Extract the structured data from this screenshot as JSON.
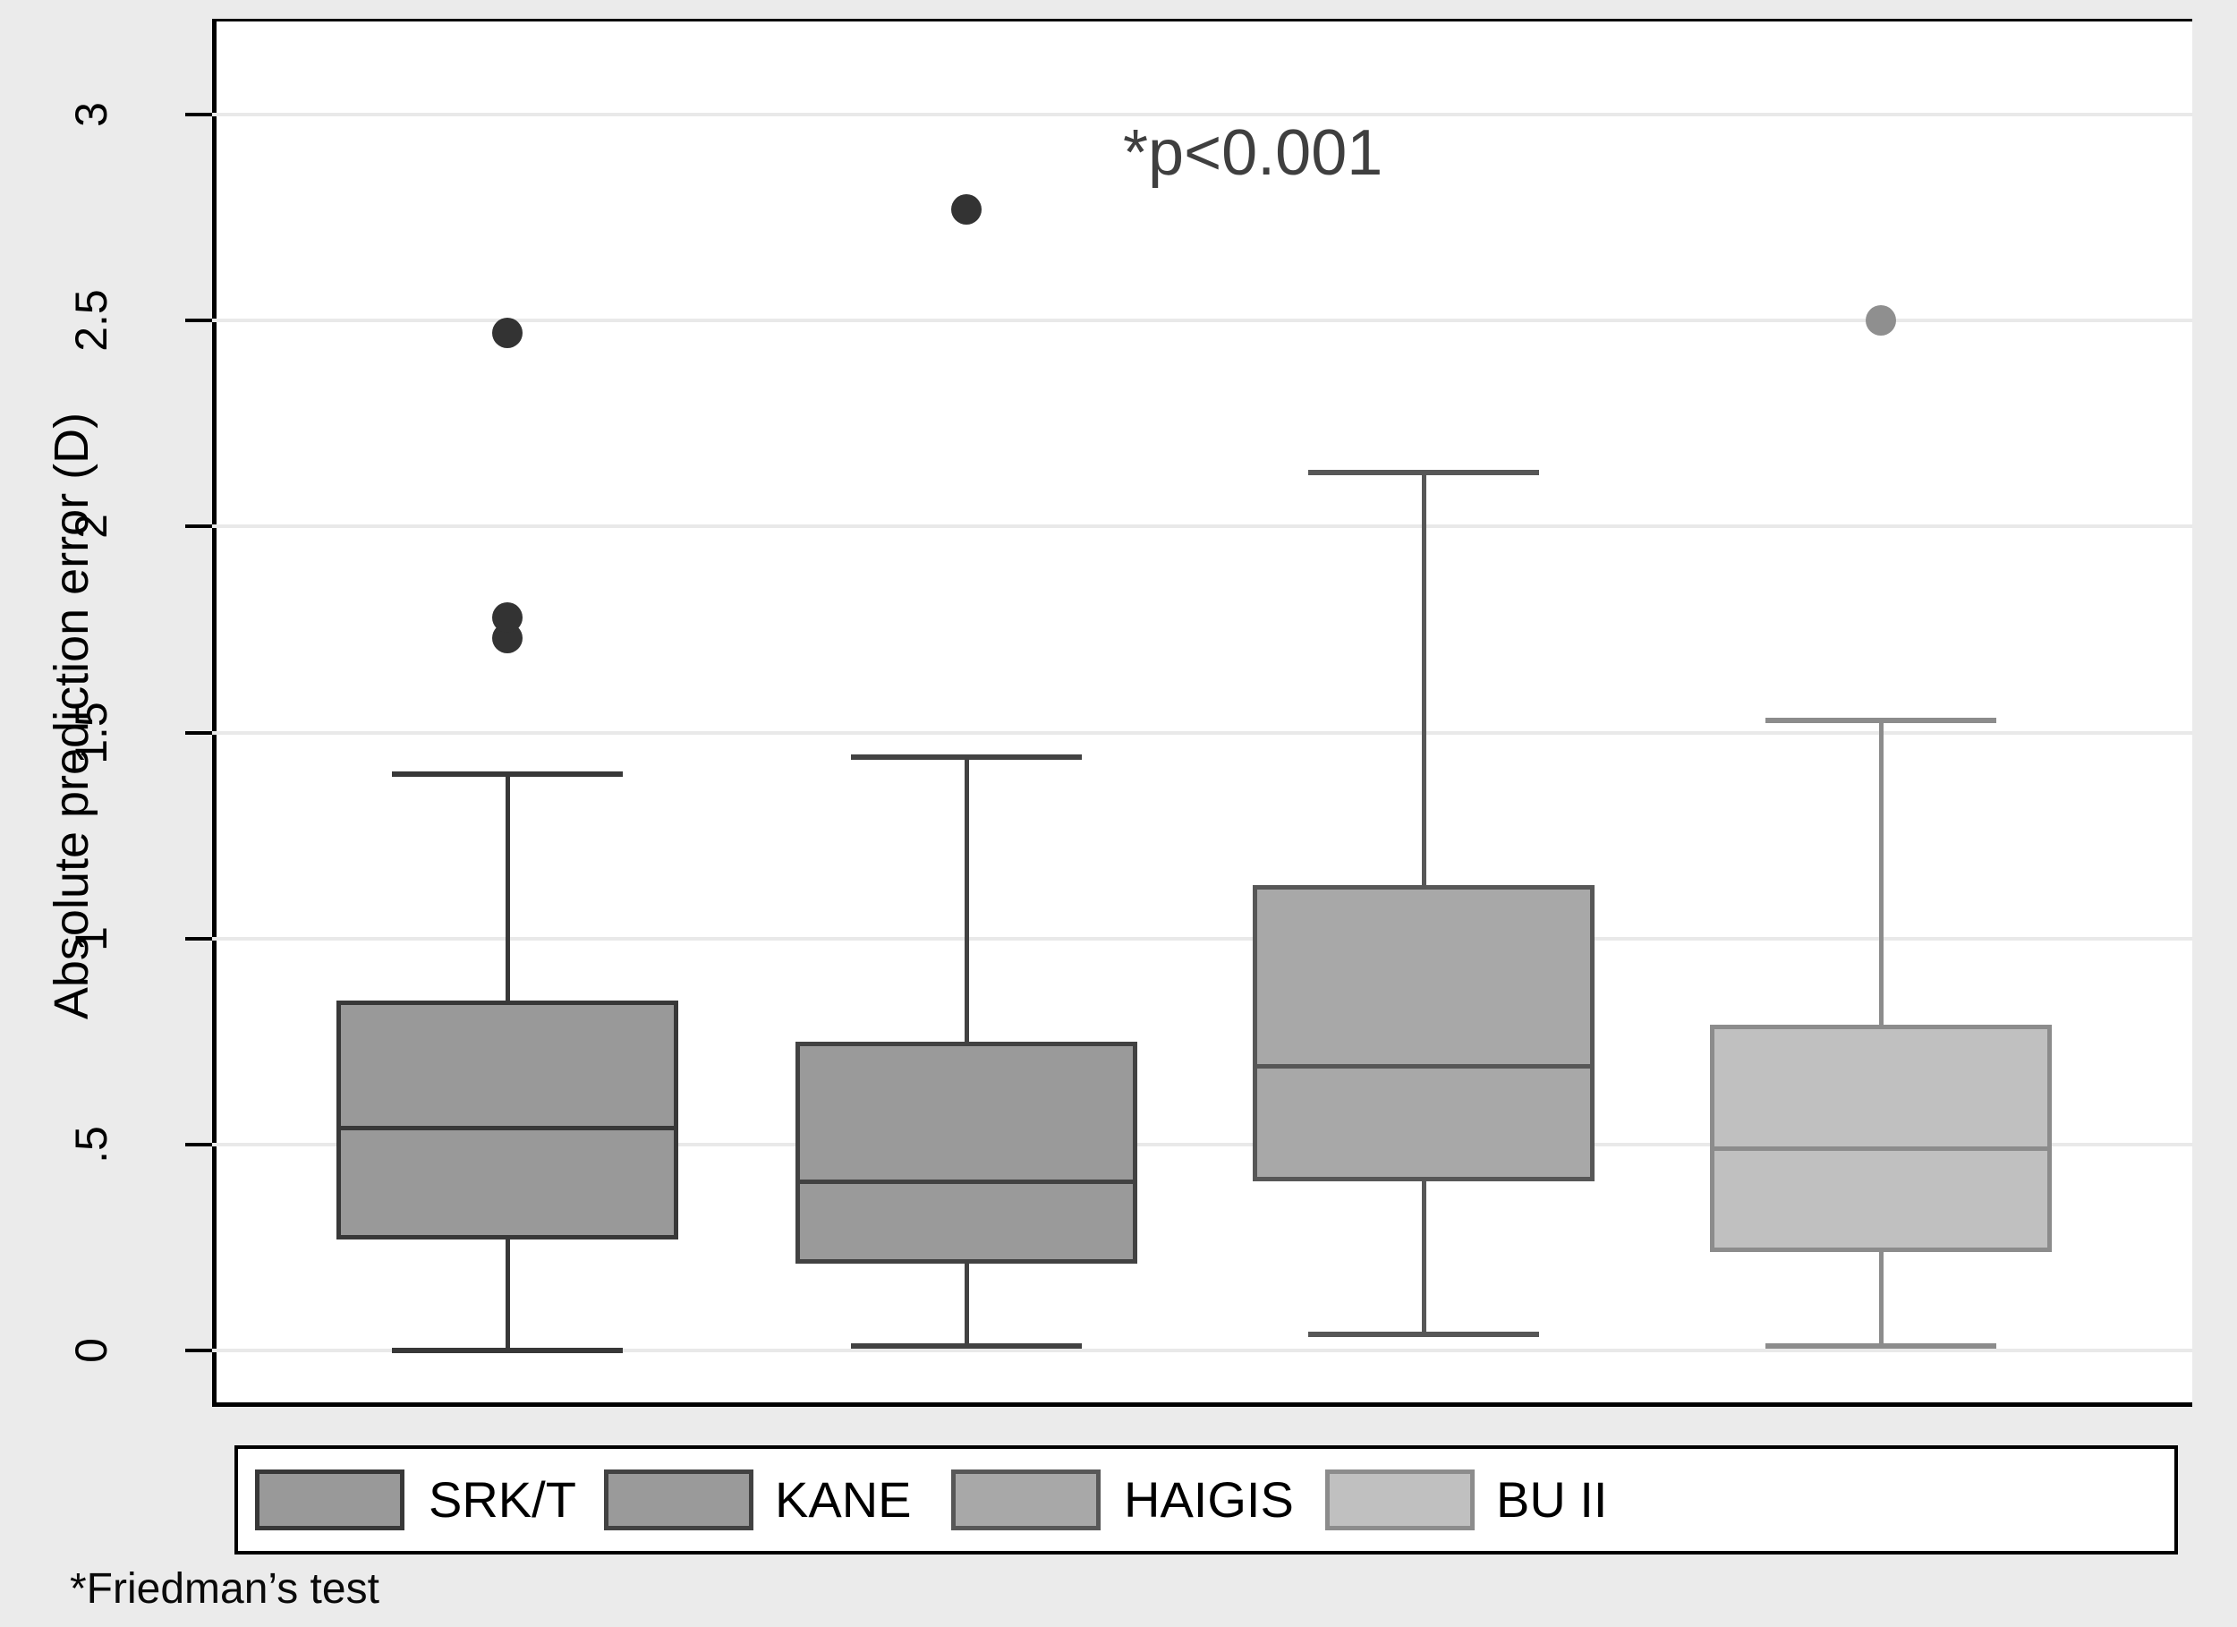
{
  "figure": {
    "y_axis": {
      "title": "Absolute prediction error (D)",
      "tick_labels": [
        "0",
        ".5",
        "1",
        "1.5",
        "2",
        "2.5",
        "3"
      ],
      "tick_values": [
        0,
        0.5,
        1,
        1.5,
        2,
        2.5,
        3
      ]
    },
    "annotation": "*p<0.001",
    "footnote": "*Friedman’s test"
  },
  "chart_data": {
    "type": "box",
    "title": "",
    "xlabel": "",
    "ylabel": "Absolute prediction error (D)",
    "ylim": [
      0,
      3.15
    ],
    "yticks": [
      0,
      0.5,
      1,
      1.5,
      2,
      2.5,
      3
    ],
    "ytick_labels": [
      "0",
      ".5",
      "1",
      "1.5",
      "2",
      "2.5",
      "3"
    ],
    "grid": true,
    "legend_position": "bottom",
    "annotation": "*p<0.001",
    "footnote": "*Friedman’s test",
    "background_color": "#ebebeb",
    "plot_background_color": "#ffffff",
    "gridline_color": "#e9e9e9",
    "series": [
      {
        "name": "SRK/T",
        "q1": 0.27,
        "median": 0.54,
        "q3": 0.85,
        "whisker_low": 0.0,
        "whisker_high": 1.4,
        "outliers": [
          1.73,
          1.78,
          2.47
        ],
        "fill": "#999999",
        "stroke": "#383838",
        "outlier_color": "#333333"
      },
      {
        "name": "KANE",
        "q1": 0.21,
        "median": 0.41,
        "q3": 0.75,
        "whisker_low": 0.01,
        "whisker_high": 1.44,
        "outliers": [
          2.77
        ],
        "fill": "#9a9a9a",
        "stroke": "#424242",
        "outlier_color": "#333333"
      },
      {
        "name": "HAIGIS",
        "q1": 0.41,
        "median": 0.69,
        "q3": 1.13,
        "whisker_low": 0.04,
        "whisker_high": 2.13,
        "outliers": [],
        "fill": "#a8a8a8",
        "stroke": "#575757",
        "outlier_color": "#575757"
      },
      {
        "name": "BU II",
        "q1": 0.24,
        "median": 0.49,
        "q3": 0.79,
        "whisker_low": 0.01,
        "whisker_high": 1.53,
        "outliers": [
          2.5
        ],
        "fill": "#c0c0c0",
        "stroke": "#8c8c8c",
        "outlier_color": "#8f8f8f"
      }
    ]
  }
}
